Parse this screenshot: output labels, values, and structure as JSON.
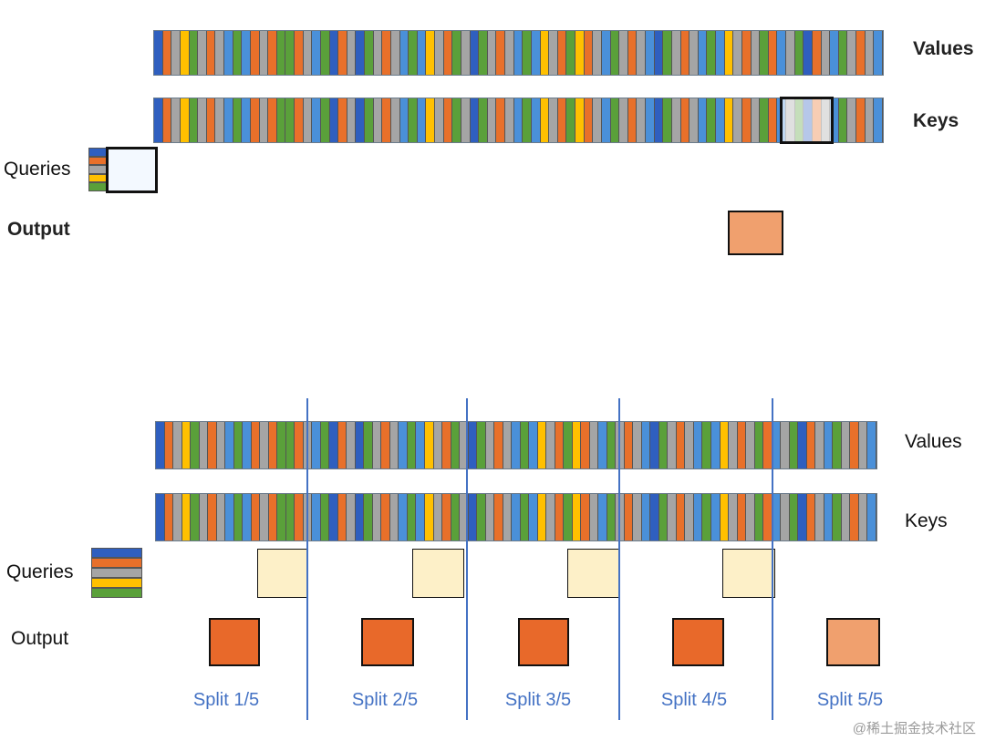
{
  "top": {
    "values_label": "Values",
    "keys_label": "Keys",
    "queries_label": "Queries",
    "output_label": "Output"
  },
  "bottom": {
    "values_label": "Values",
    "keys_label": "Keys",
    "queries_label": "Queries",
    "output_label": "Output",
    "splits": [
      "Split 1/5",
      "Split 2/5",
      "Split 3/5",
      "Split 4/5",
      "Split 5/5"
    ]
  },
  "colors": {
    "B": "#2f5fbf",
    "O": "#e8702a",
    "G": "#a5a5a5",
    "Y": "#ffc000",
    "N": "#5aa03a",
    "L": "#4a90d9",
    "accent": "#4472c4",
    "output": "#e8692a",
    "output_light": "#f0a06e",
    "query_tile": "#fdf0c8"
  },
  "stripe_sequence": "BOGYNGOGLNLOGONNOGLNBOGBNGOGLNLYGONGBNGOGLNLYGONYOGLNGOGLBNGOGLNLYGOGNOLGNBOGLNGOGL",
  "query_rows": [
    "B",
    "O",
    "G",
    "Y",
    "N"
  ],
  "watermark": "@稀土掘金技术社区"
}
